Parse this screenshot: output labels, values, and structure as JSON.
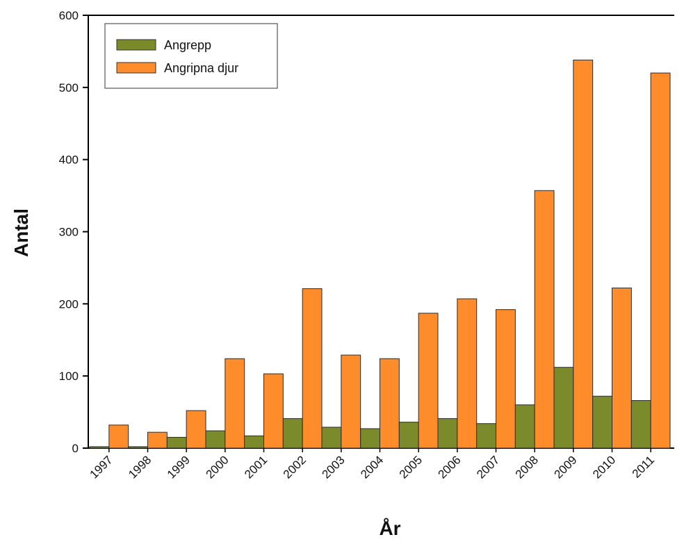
{
  "chart_data": {
    "type": "bar",
    "title": "",
    "xlabel": "År",
    "ylabel": "Antal",
    "ylim": [
      0,
      600
    ],
    "yticks": [
      0,
      100,
      200,
      300,
      400,
      500,
      600
    ],
    "grid": false,
    "legend_position": "top-left",
    "categories": [
      "1997",
      "1998",
      "1999",
      "2000",
      "2001",
      "2002",
      "2003",
      "2004",
      "2005",
      "2006",
      "2007",
      "2008",
      "2009",
      "2010",
      "2011"
    ],
    "series": [
      {
        "name": "Angrepp",
        "color": "#7b8a2b",
        "values": [
          2,
          2,
          15,
          24,
          17,
          41,
          29,
          27,
          36,
          41,
          34,
          60,
          112,
          72,
          66
        ]
      },
      {
        "name": "Angripna djur",
        "color": "#ff8c2a",
        "values": [
          32,
          22,
          52,
          124,
          103,
          221,
          129,
          124,
          187,
          207,
          192,
          357,
          538,
          222,
          520
        ]
      }
    ]
  }
}
